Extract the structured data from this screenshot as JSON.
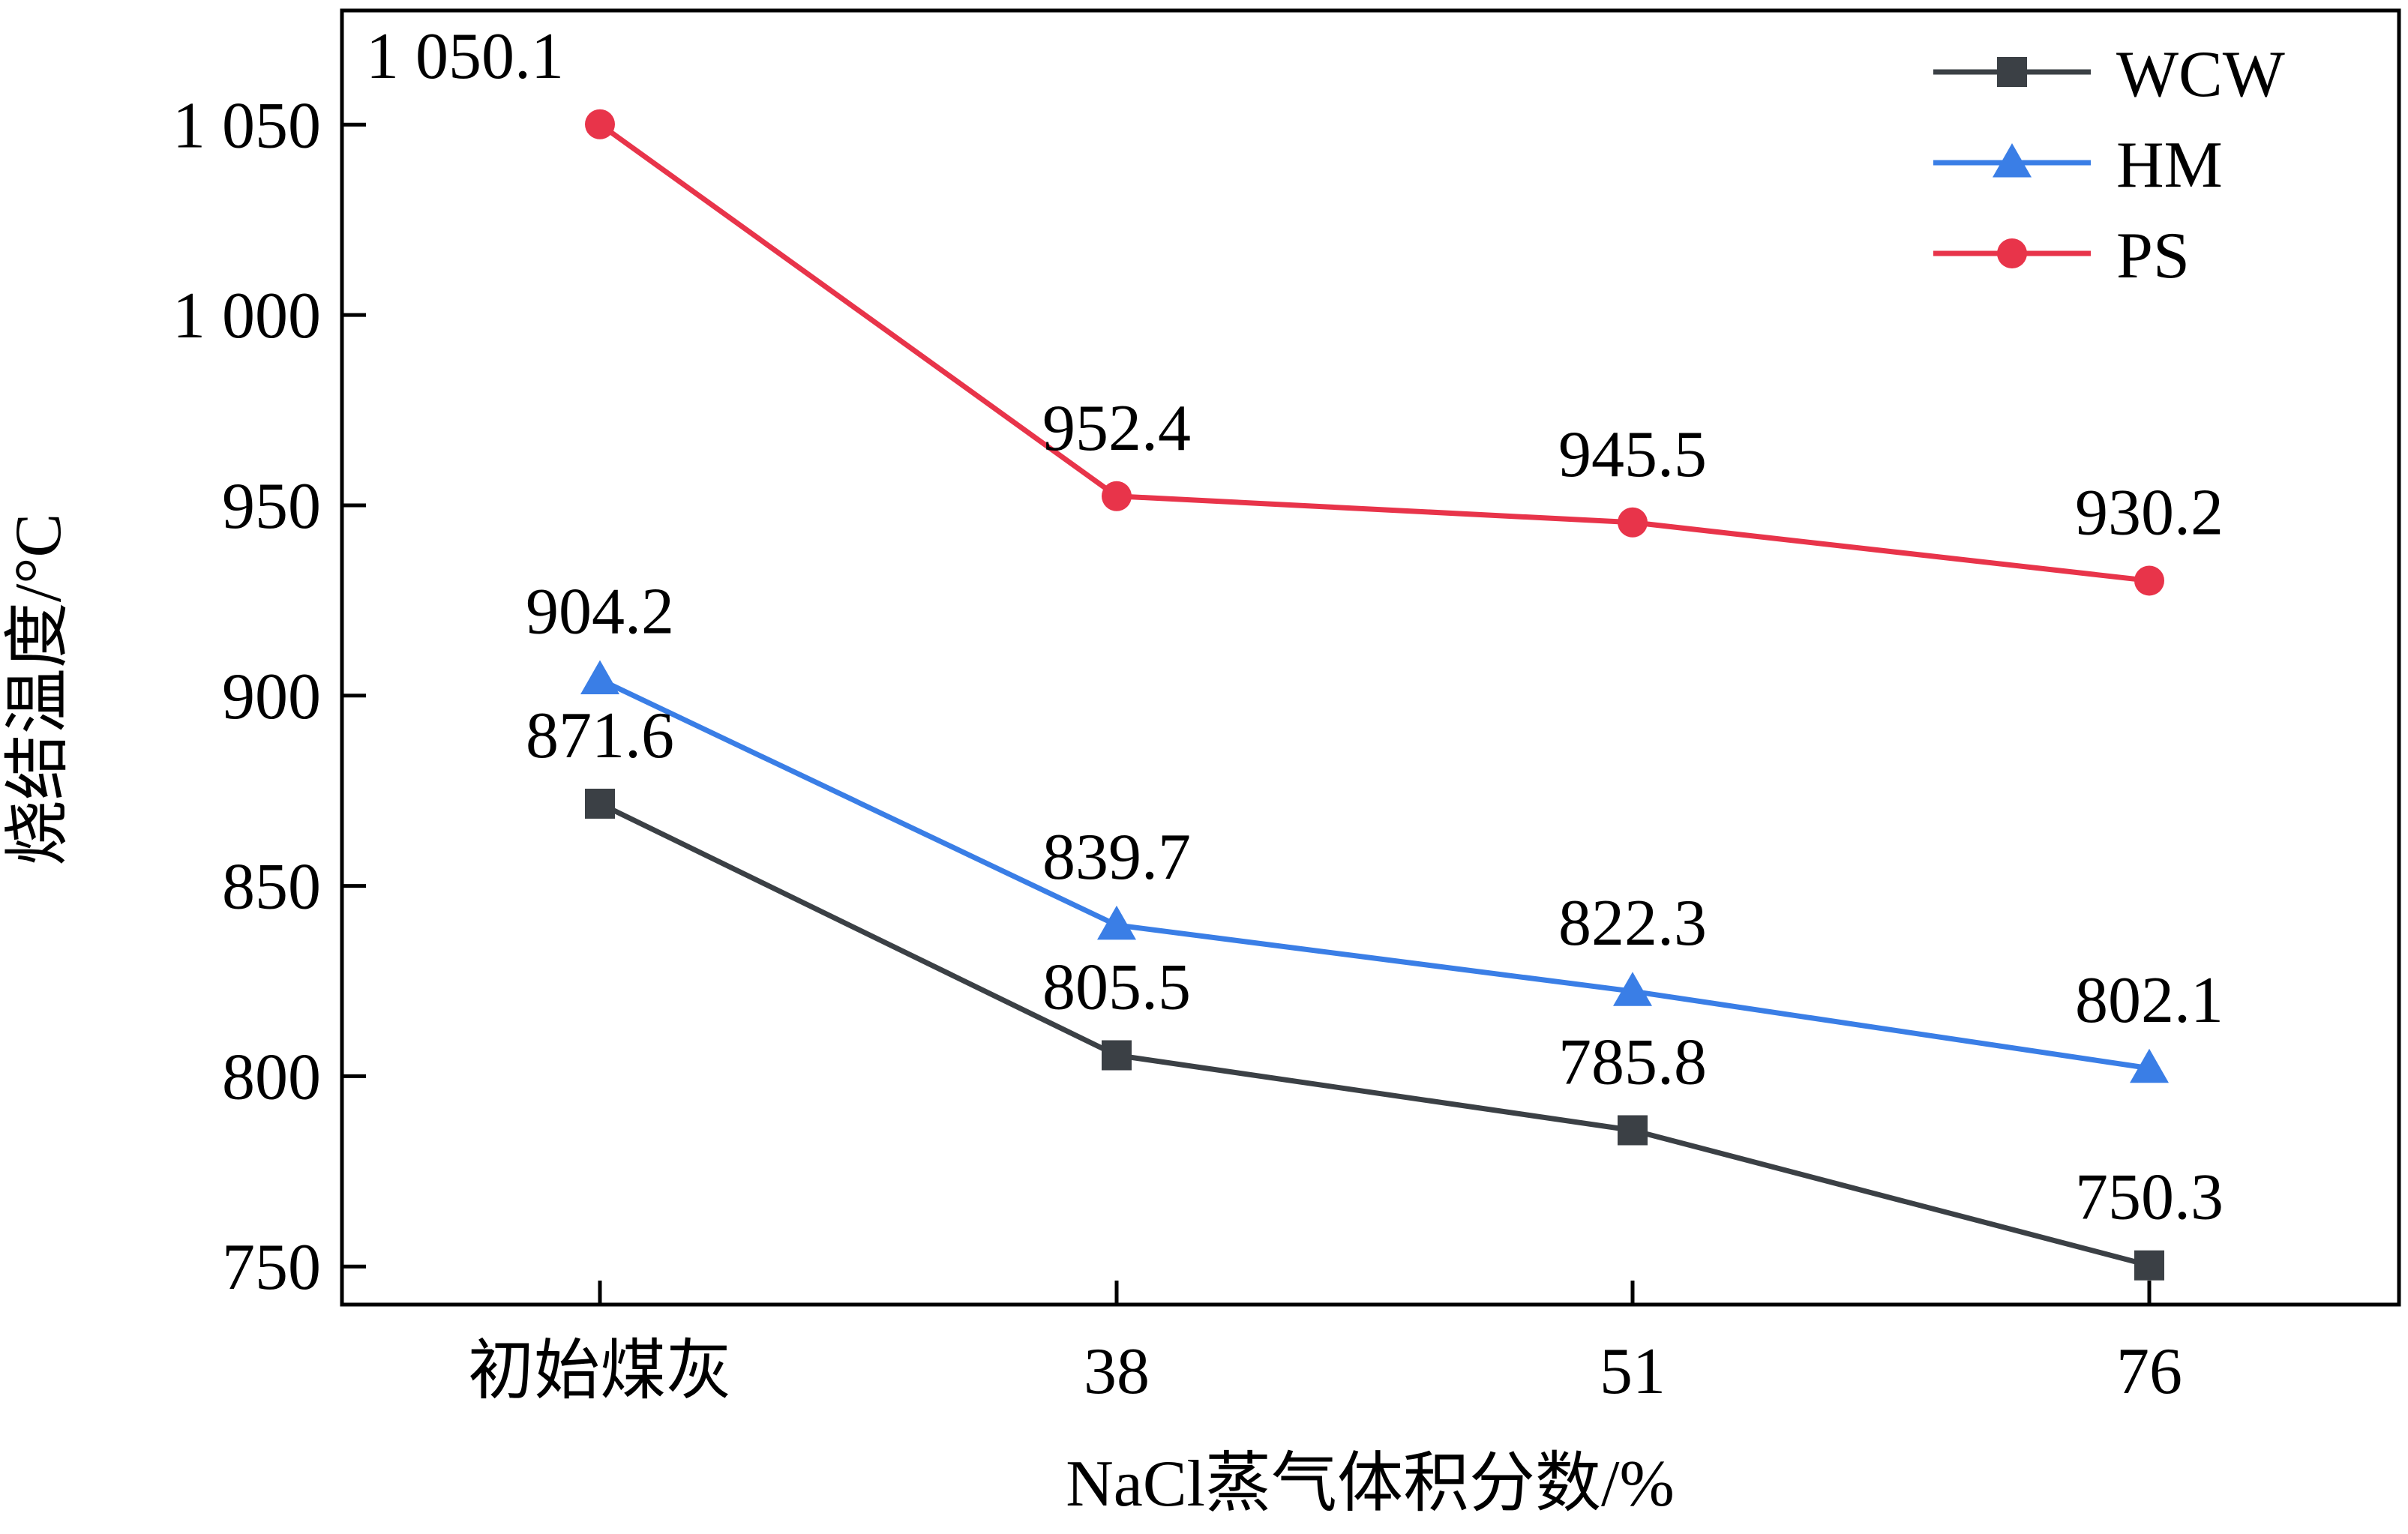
{
  "chart_data": {
    "type": "line",
    "categories": [
      "初始煤灰",
      "38",
      "51",
      "76"
    ],
    "xlabel": "NaCl蒸气体积分数/%",
    "ylabel": "烧结温度/°C",
    "ylim": [
      740,
      1080
    ],
    "yticks": [
      750,
      800,
      850,
      900,
      950,
      1000,
      1050
    ],
    "ytick_labels": [
      "750",
      "800",
      "850",
      "900",
      "950",
      "1 000",
      "1 050"
    ],
    "grid": false,
    "legend_position": "top-right",
    "series": [
      {
        "name": "WCW",
        "marker": "square",
        "color": "#3b4045",
        "values": [
          871.6,
          805.5,
          785.8,
          750.3
        ],
        "labels": [
          "871.6",
          "805.5",
          "785.8",
          "750.3"
        ]
      },
      {
        "name": "HM",
        "marker": "triangle",
        "color": "#3a7ee6",
        "values": [
          904.2,
          839.7,
          822.3,
          802.1
        ],
        "labels": [
          "904.2",
          "839.7",
          "822.3",
          "802.1"
        ]
      },
      {
        "name": "PS",
        "marker": "circle",
        "color": "#e8344a",
        "values": [
          1050.1,
          952.4,
          945.5,
          930.2
        ],
        "labels": [
          "1 050.1",
          "952.4",
          "945.5",
          "930.2"
        ]
      }
    ]
  }
}
